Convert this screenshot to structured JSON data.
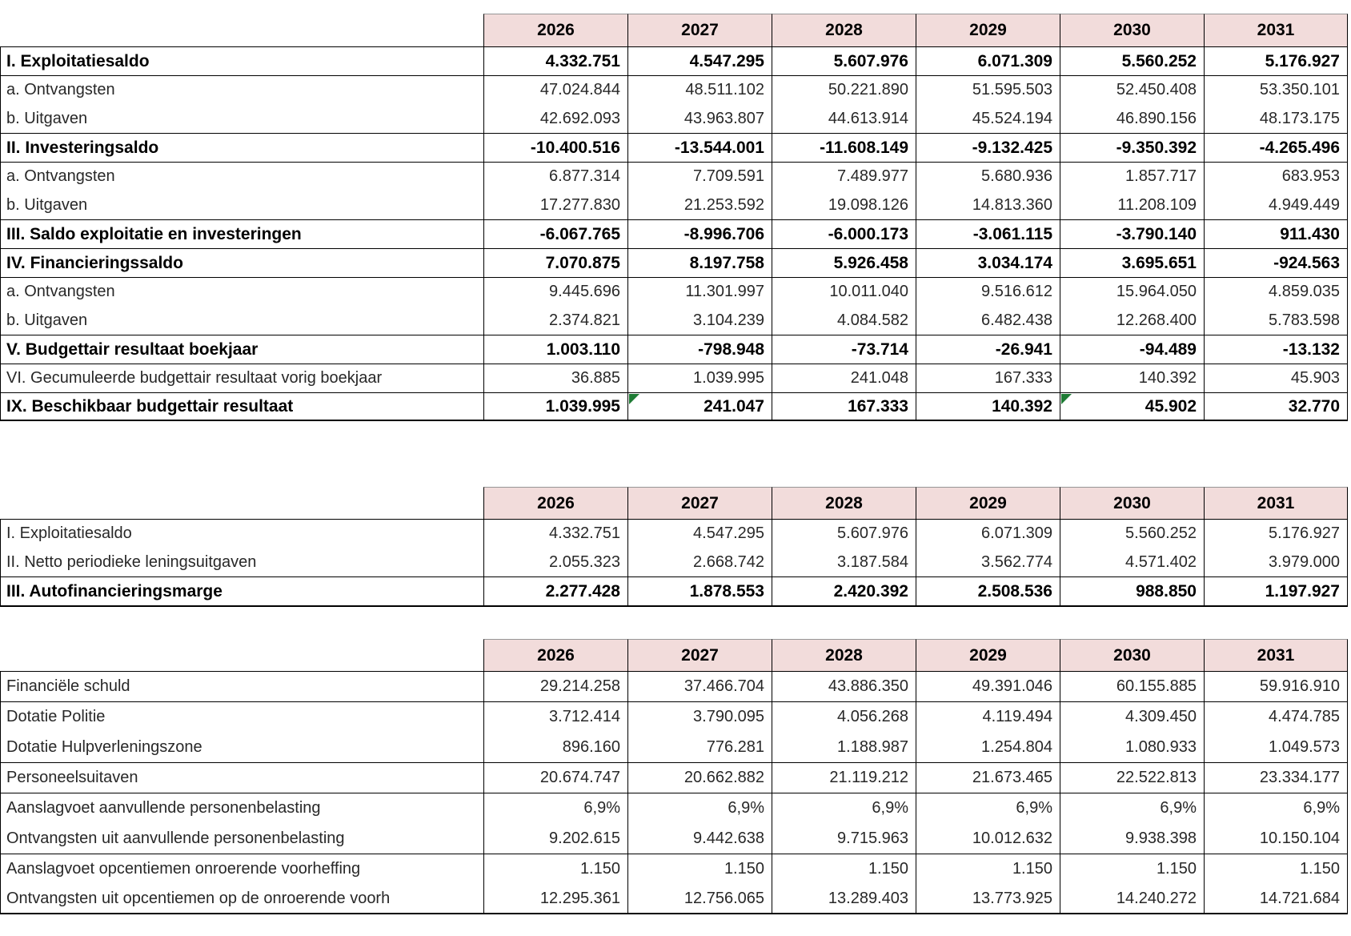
{
  "years": [
    "2026",
    "2027",
    "2028",
    "2029",
    "2030",
    "2031"
  ],
  "style": {
    "header_bg": "#f2dcdb",
    "border_color": "#000000",
    "comment_marker_green": "#1e7b34"
  },
  "tables": [
    {
      "name": "budgettair-resultaat-table",
      "css": "t-budget",
      "rows": [
        {
          "label": "I. Exploitatiesaldo",
          "bold": true,
          "values": [
            "4.332.751",
            "4.547.295",
            "5.607.976",
            "6.071.309",
            "5.560.252",
            "5.176.927"
          ]
        },
        {
          "label": "a. Ontvangsten",
          "bold": false,
          "values": [
            "47.024.844",
            "48.511.102",
            "50.221.890",
            "51.595.503",
            "52.450.408",
            "53.350.101"
          ]
        },
        {
          "label": "b. Uitgaven",
          "bold": false,
          "merge_top": true,
          "values": [
            "42.692.093",
            "43.963.807",
            "44.613.914",
            "45.524.194",
            "46.890.156",
            "48.173.175"
          ]
        },
        {
          "label": "II. Investeringsaldo",
          "bold": true,
          "values": [
            "-10.400.516",
            "-13.544.001",
            "-11.608.149",
            "-9.132.425",
            "-9.350.392",
            "-4.265.496"
          ]
        },
        {
          "label": "a. Ontvangsten",
          "bold": false,
          "values": [
            "6.877.314",
            "7.709.591",
            "7.489.977",
            "5.680.936",
            "1.857.717",
            "683.953"
          ]
        },
        {
          "label": "b. Uitgaven",
          "bold": false,
          "merge_top": true,
          "values": [
            "17.277.830",
            "21.253.592",
            "19.098.126",
            "14.813.360",
            "11.208.109",
            "4.949.449"
          ]
        },
        {
          "label": "III. Saldo exploitatie en investeringen",
          "bold": true,
          "values": [
            "-6.067.765",
            "-8.996.706",
            "-6.000.173",
            "-3.061.115",
            "-3.790.140",
            "911.430"
          ]
        },
        {
          "label": "IV. Financieringssaldo",
          "bold": true,
          "values": [
            "7.070.875",
            "8.197.758",
            "5.926.458",
            "3.034.174",
            "3.695.651",
            "-924.563"
          ]
        },
        {
          "label": "a. Ontvangsten",
          "bold": false,
          "values": [
            "9.445.696",
            "11.301.997",
            "10.011.040",
            "9.516.612",
            "15.964.050",
            "4.859.035"
          ]
        },
        {
          "label": "b. Uitgaven",
          "bold": false,
          "merge_top": true,
          "values": [
            "2.374.821",
            "3.104.239",
            "4.084.582",
            "6.482.438",
            "12.268.400",
            "5.783.598"
          ]
        },
        {
          "label": "V. Budgettair resultaat boekjaar",
          "bold": true,
          "values": [
            "1.003.110",
            "-798.948",
            "-73.714",
            "-26.941",
            "-94.489",
            "-13.132"
          ]
        },
        {
          "label": "VI. Gecumuleerde budgettair resultaat vorig boekjaar",
          "bold": false,
          "values": [
            "36.885",
            "1.039.995",
            "241.048",
            "167.333",
            "140.392",
            "45.903"
          ]
        },
        {
          "label": "IX. Beschikbaar budgettair resultaat",
          "bold": true,
          "values": [
            "1.039.995",
            "241.047",
            "167.333",
            "140.392",
            "45.902",
            "32.770"
          ],
          "comment_markers": [
            1,
            4
          ]
        }
      ]
    },
    {
      "name": "autofinancieringsmarge-table",
      "css": "t-afm",
      "rows": [
        {
          "label": "I. Exploitatiesaldo",
          "bold": false,
          "values": [
            "4.332.751",
            "4.547.295",
            "5.607.976",
            "6.071.309",
            "5.560.252",
            "5.176.927"
          ]
        },
        {
          "label": "II. Netto periodieke leningsuitgaven",
          "bold": false,
          "merge_top": true,
          "values": [
            "2.055.323",
            "2.668.742",
            "3.187.584",
            "3.562.774",
            "4.571.402",
            "3.979.000"
          ]
        },
        {
          "label": "III. Autofinancieringsmarge",
          "bold": true,
          "values": [
            "2.277.428",
            "1.878.553",
            "2.420.392",
            "2.508.536",
            "988.850",
            "1.197.927"
          ]
        }
      ]
    },
    {
      "name": "kerngegevens-table",
      "css": "t-kern",
      "rows": [
        {
          "label": "Financiële schuld",
          "bold": false,
          "values": [
            "29.214.258",
            "37.466.704",
            "43.886.350",
            "49.391.046",
            "60.155.885",
            "59.916.910"
          ]
        },
        {
          "label": "Dotatie Politie",
          "bold": false,
          "values": [
            "3.712.414",
            "3.790.095",
            "4.056.268",
            "4.119.494",
            "4.309.450",
            "4.474.785"
          ]
        },
        {
          "label": "Dotatie Hulpverleningszone",
          "bold": false,
          "merge_top": true,
          "values": [
            "896.160",
            "776.281",
            "1.188.987",
            "1.254.804",
            "1.080.933",
            "1.049.573"
          ]
        },
        {
          "label": "Personeelsuitaven",
          "bold": false,
          "values": [
            "20.674.747",
            "20.662.882",
            "21.119.212",
            "21.673.465",
            "22.522.813",
            "23.334.177"
          ]
        },
        {
          "label": "Aanslagvoet aanvullende personenbelasting",
          "bold": false,
          "values": [
            "6,9%",
            "6,9%",
            "6,9%",
            "6,9%",
            "6,9%",
            "6,9%"
          ]
        },
        {
          "label": "Ontvangsten uit aanvullende personenbelasting",
          "bold": false,
          "merge_top": true,
          "values": [
            "9.202.615",
            "9.442.638",
            "9.715.963",
            "10.012.632",
            "9.938.398",
            "10.150.104"
          ]
        },
        {
          "label": "Aanslagvoet opcentiemen onroerende voorheffing",
          "bold": false,
          "values": [
            "1.150",
            "1.150",
            "1.150",
            "1.150",
            "1.150",
            "1.150"
          ]
        },
        {
          "label": "Ontvangsten uit opcentiemen op de onroerende voorh",
          "bold": false,
          "merge_top": true,
          "values": [
            "12.295.361",
            "12.756.065",
            "13.289.403",
            "13.773.925",
            "14.240.272",
            "14.721.684"
          ]
        }
      ]
    }
  ]
}
